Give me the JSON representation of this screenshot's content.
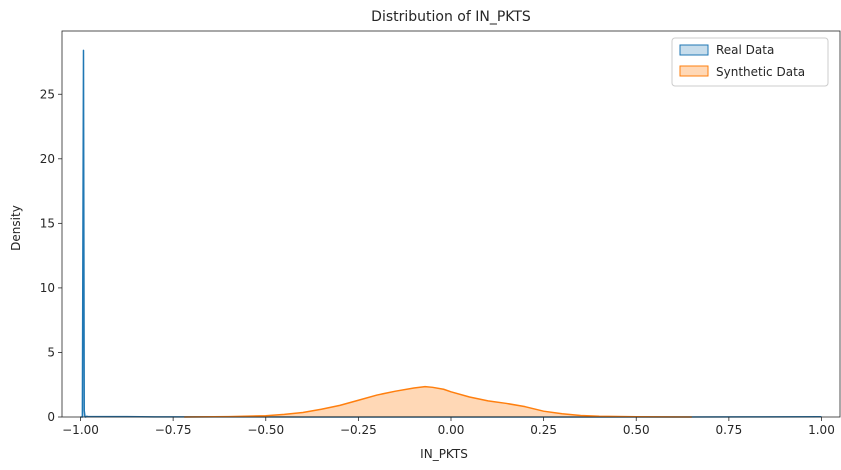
{
  "chart_data": {
    "type": "area",
    "title": "Distribution of IN_PKTS",
    "xlabel": "IN_PKTS",
    "ylabel": "Density",
    "xlim": [
      -1.05,
      1.05
    ],
    "ylim": [
      0,
      29.9
    ],
    "xticks": [
      -1.0,
      -0.75,
      -0.5,
      -0.25,
      0.0,
      0.25,
      0.5,
      0.75,
      1.0
    ],
    "xtick_labels": [
      "−1.00",
      "−0.75",
      "−0.50",
      "−0.25",
      "0.00",
      "0.25",
      "0.50",
      "0.75",
      "1.00"
    ],
    "yticks": [
      0,
      5,
      10,
      15,
      20,
      25
    ],
    "ytick_labels": [
      "0",
      "5",
      "10",
      "15",
      "20",
      "25"
    ],
    "grid": false,
    "legend_position": "top-right",
    "series": [
      {
        "name": "Real Data",
        "color": "#1f77b4",
        "fill_opacity": 0.25,
        "x": [
          -1.0,
          -0.995,
          -0.992,
          -0.99,
          -0.988,
          -0.986,
          -0.984,
          -0.98,
          -0.9,
          -0.8,
          -0.6,
          -0.4,
          -0.2,
          0.0,
          0.2,
          0.4,
          0.6,
          0.8,
          1.0
        ],
        "y": [
          0.0,
          0.0,
          28.4,
          0.5,
          0.02,
          0.0,
          0.05,
          0.04,
          0.03,
          0.01,
          0.01,
          0.0,
          0.0,
          0.0,
          0.0,
          0.0,
          0.0,
          0.01,
          0.02
        ]
      },
      {
        "name": "Synthetic Data",
        "color": "#ff7f0e",
        "fill_opacity": 0.3,
        "x": [
          -0.72,
          -0.6,
          -0.5,
          -0.45,
          -0.4,
          -0.35,
          -0.3,
          -0.25,
          -0.2,
          -0.15,
          -0.1,
          -0.07,
          -0.05,
          -0.02,
          0.0,
          0.05,
          0.1,
          0.15,
          0.2,
          0.25,
          0.3,
          0.35,
          0.4,
          0.5,
          0.65
        ],
        "y": [
          0.0,
          0.03,
          0.1,
          0.2,
          0.35,
          0.6,
          0.9,
          1.3,
          1.7,
          2.0,
          2.25,
          2.35,
          2.3,
          2.15,
          1.95,
          1.55,
          1.25,
          1.05,
          0.8,
          0.45,
          0.25,
          0.12,
          0.06,
          0.02,
          0.0
        ]
      }
    ]
  }
}
